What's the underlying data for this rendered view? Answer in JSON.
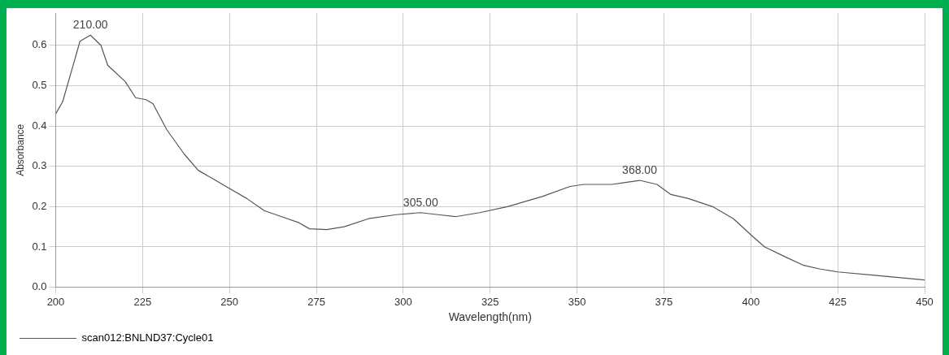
{
  "chart_data": {
    "type": "line",
    "xlabel": "Wavelength(nm)",
    "ylabel": "Absorbance",
    "x": [
      200,
      202,
      205,
      207,
      210,
      213,
      215,
      220,
      223,
      226,
      228,
      232,
      237,
      241,
      245,
      250,
      255,
      260,
      265,
      270,
      273,
      278,
      283,
      290,
      298,
      305,
      310,
      315,
      322,
      330,
      340,
      348,
      352,
      360,
      368,
      373,
      377,
      382,
      389,
      395,
      400,
      404,
      410,
      415,
      420,
      425,
      435,
      445,
      450
    ],
    "series": [
      {
        "name": "scan012:BNLND37:Cycle01",
        "color": "#555555",
        "values": [
          0.43,
          0.46,
          0.55,
          0.61,
          0.625,
          0.6,
          0.55,
          0.51,
          0.47,
          0.465,
          0.455,
          0.39,
          0.33,
          0.29,
          0.27,
          0.245,
          0.22,
          0.19,
          0.175,
          0.16,
          0.145,
          0.143,
          0.15,
          0.17,
          0.18,
          0.185,
          0.18,
          0.175,
          0.185,
          0.2,
          0.225,
          0.25,
          0.255,
          0.255,
          0.265,
          0.255,
          0.23,
          0.22,
          0.2,
          0.17,
          0.13,
          0.1,
          0.075,
          0.055,
          0.045,
          0.038,
          0.03,
          0.022,
          0.018
        ]
      }
    ],
    "xlim": [
      200,
      450
    ],
    "xticks": [
      200,
      225,
      250,
      275,
      300,
      325,
      350,
      375,
      400,
      425,
      450
    ],
    "ylim": [
      0,
      0.68
    ],
    "yticks": [
      {
        "value": 0,
        "label": "0.0"
      },
      {
        "value": 0.1,
        "label": "0.1"
      },
      {
        "value": 0.2,
        "label": "0.2"
      },
      {
        "value": 0.3,
        "label": "0.3"
      },
      {
        "value": 0.4,
        "label": "0.4"
      },
      {
        "value": 0.5,
        "label": "0.5"
      },
      {
        "value": 0.6,
        "label": "0.6"
      }
    ],
    "annotations": [
      {
        "text": "210.00",
        "x": 210,
        "y": 0.625
      },
      {
        "text": "305.00",
        "x": 305,
        "y": 0.185
      },
      {
        "text": "368.00",
        "x": 368,
        "y": 0.265
      }
    ],
    "grid": true,
    "legend": "bottom left",
    "marker": "none",
    "line_style": "solid"
  }
}
